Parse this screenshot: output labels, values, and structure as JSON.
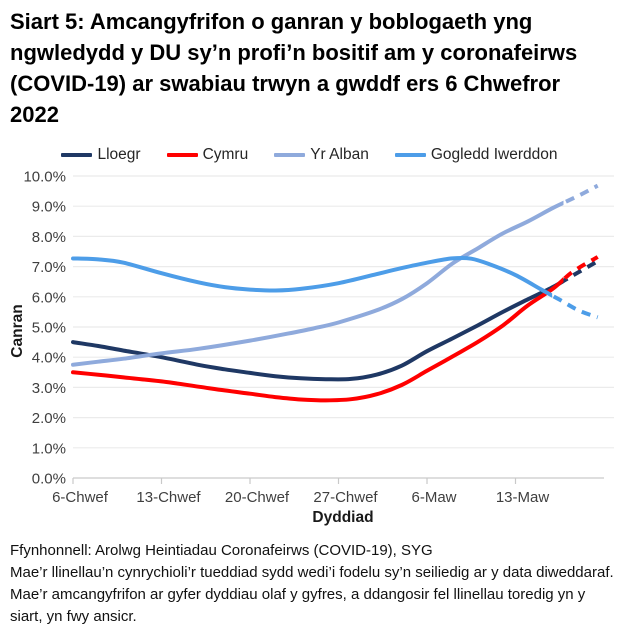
{
  "title": "Siart 5: Amcangyfrifon o ganran y boblogaeth yng ngwledydd y DU sy’n profi’n bositif am y coronafeirws (COVID-19) ar swabiau trwyn a gwddf ers 6 Chwefror 2022",
  "footer": {
    "source": "Ffynhonnell: Arolwg Heintiadau Coronafeirws (COVID-19), SYG",
    "note": "Mae’r llinellau’n cynrychioli’r tueddiad sydd wedi’i fodelu sy’n seiliedig ar y data diweddaraf. Mae’r amcangyfrifon ar gyfer dyddiau olaf y gyfres, a ddangosir fel llinellau toredig yn y siart, yn fwy ansicr."
  },
  "colors": {
    "grid": "#EBEBEB",
    "axis": "#C9C9C9",
    "tick_text": "#3F3F3F",
    "axis_title_text": "#1A1A1A"
  },
  "chart_data": {
    "type": "line",
    "title": "Siart 5: Amcangyfrifon o ganran y boblogaeth yng ngwledydd y DU sy’n profi’n bositif am y coronafeirws (COVID-19) ar swabiau trwyn a gwddf ers 6 Chwefror 2022",
    "xlabel": "Dyddiad",
    "ylabel": "Canran",
    "ylim": [
      0,
      10
    ],
    "ytick_step": 1,
    "ytick_labels": [
      "0.0%",
      "1.0%",
      "2.0%",
      "3.0%",
      "4.0%",
      "5.0%",
      "6.0%",
      "7.0%",
      "8.0%",
      "9.0%",
      "10.0%"
    ],
    "x_unit": "days since 6 Chwefror 2022",
    "x_range_days": [
      0,
      42
    ],
    "xticks": [
      {
        "day": 0,
        "label": "6-Chwef"
      },
      {
        "day": 7,
        "label": "13-Chwef"
      },
      {
        "day": 14,
        "label": "20-Chwef"
      },
      {
        "day": 21,
        "label": "27-Chwef"
      },
      {
        "day": 28,
        "label": "6-Maw"
      },
      {
        "day": 35,
        "label": "13-Maw"
      }
    ],
    "grid": "horizontal",
    "legend_position": "top",
    "dashed_note": "llinellau toredig = amcangyfrifon mwy ansicr ar gyfer dyddiau olaf y gyfres",
    "series": [
      {
        "name": "Lloegr",
        "color": "#1F3864",
        "dash_from_day": 38.8,
        "points": [
          [
            0,
            4.5
          ],
          [
            2,
            4.37
          ],
          [
            4,
            4.22
          ],
          [
            7,
            4.0
          ],
          [
            10,
            3.74
          ],
          [
            12,
            3.6
          ],
          [
            14,
            3.48
          ],
          [
            16,
            3.37
          ],
          [
            18,
            3.3
          ],
          [
            20,
            3.27
          ],
          [
            22,
            3.28
          ],
          [
            24,
            3.42
          ],
          [
            26,
            3.72
          ],
          [
            28,
            4.2
          ],
          [
            30,
            4.62
          ],
          [
            32,
            5.05
          ],
          [
            34,
            5.5
          ],
          [
            36,
            5.92
          ],
          [
            38,
            6.33
          ],
          [
            39.5,
            6.7
          ],
          [
            41.5,
            7.18
          ]
        ]
      },
      {
        "name": "Cymru",
        "color": "#FF0000",
        "dash_from_day": 38.8,
        "points": [
          [
            0,
            3.5
          ],
          [
            2,
            3.42
          ],
          [
            4,
            3.33
          ],
          [
            7,
            3.2
          ],
          [
            10,
            3.02
          ],
          [
            12,
            2.9
          ],
          [
            14,
            2.79
          ],
          [
            16,
            2.68
          ],
          [
            18,
            2.6
          ],
          [
            20,
            2.57
          ],
          [
            22,
            2.61
          ],
          [
            24,
            2.77
          ],
          [
            26,
            3.08
          ],
          [
            28,
            3.55
          ],
          [
            30,
            4.02
          ],
          [
            32,
            4.5
          ],
          [
            34,
            5.05
          ],
          [
            36,
            5.72
          ],
          [
            38,
            6.28
          ],
          [
            39.5,
            6.82
          ],
          [
            41.5,
            7.32
          ]
        ]
      },
      {
        "name": "Yr Alban",
        "color": "#8FAADC",
        "dash_from_day": 38.8,
        "points": [
          [
            0,
            3.75
          ],
          [
            2,
            3.85
          ],
          [
            4,
            3.95
          ],
          [
            7,
            4.13
          ],
          [
            10,
            4.28
          ],
          [
            14,
            4.55
          ],
          [
            17,
            4.78
          ],
          [
            19,
            4.95
          ],
          [
            21,
            5.15
          ],
          [
            24,
            5.55
          ],
          [
            26,
            5.92
          ],
          [
            28,
            6.45
          ],
          [
            30,
            7.1
          ],
          [
            32,
            7.6
          ],
          [
            34,
            8.1
          ],
          [
            36,
            8.5
          ],
          [
            38,
            8.95
          ],
          [
            40,
            9.35
          ],
          [
            41.5,
            9.68
          ]
        ]
      },
      {
        "name": "Gogledd Iwerddon",
        "color": "#4D9DE8",
        "dash_from_day": 37.9,
        "points": [
          [
            0,
            7.27
          ],
          [
            2,
            7.24
          ],
          [
            4,
            7.13
          ],
          [
            7,
            6.78
          ],
          [
            10,
            6.47
          ],
          [
            12,
            6.32
          ],
          [
            14,
            6.24
          ],
          [
            16,
            6.21
          ],
          [
            18,
            6.26
          ],
          [
            21,
            6.45
          ],
          [
            24,
            6.75
          ],
          [
            26,
            6.95
          ],
          [
            28,
            7.13
          ],
          [
            30,
            7.27
          ],
          [
            31.5,
            7.26
          ],
          [
            33,
            7.07
          ],
          [
            35,
            6.72
          ],
          [
            37,
            6.25
          ],
          [
            38.5,
            5.9
          ],
          [
            40,
            5.55
          ],
          [
            41.5,
            5.32
          ]
        ]
      }
    ]
  }
}
